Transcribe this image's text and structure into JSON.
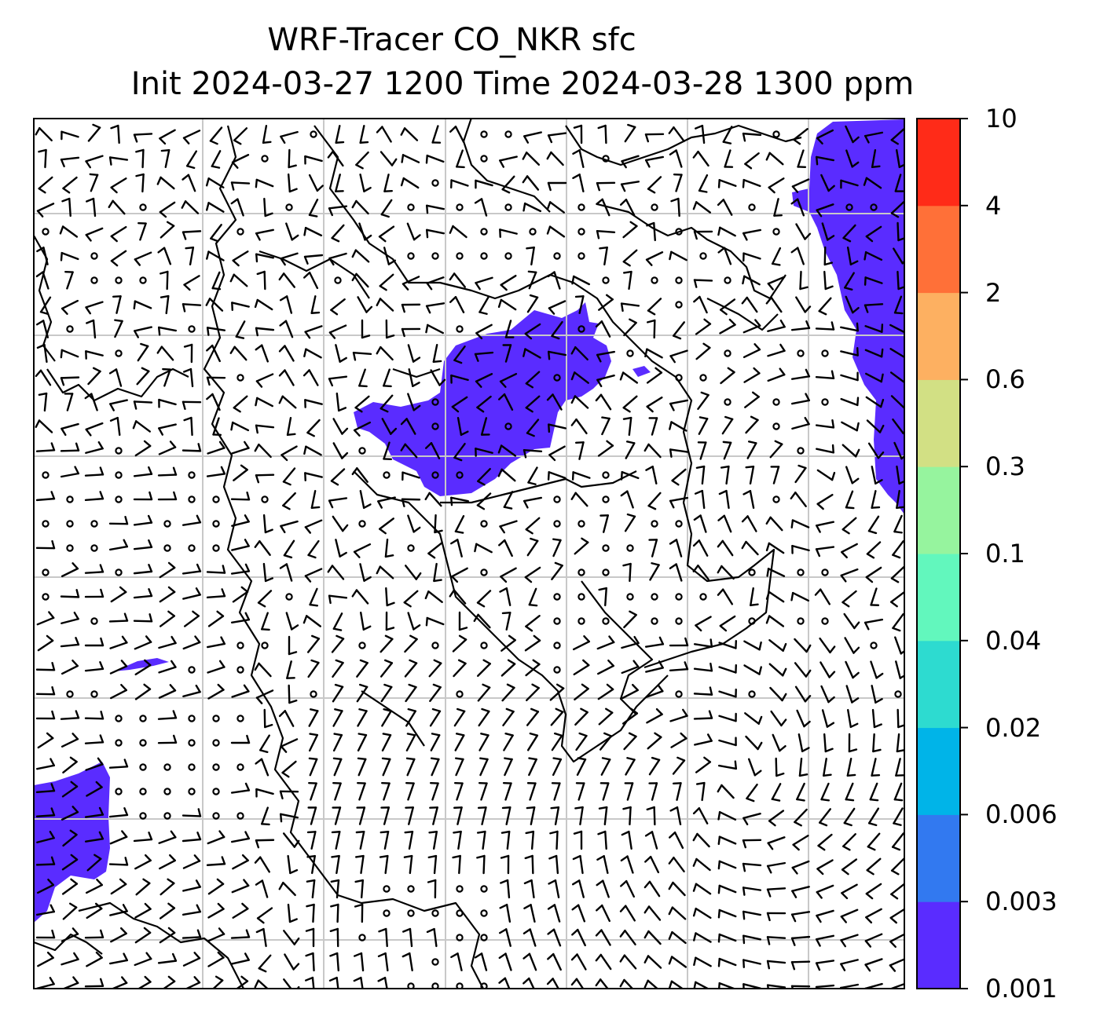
{
  "title": {
    "line1": "WRF-Tracer CO_NKR sfc",
    "line2": "Init 2024-03-27 1200 Time 2024-03-28 1300 ppm"
  },
  "colorbar": {
    "levels": [
      "0.001",
      "0.003",
      "0.006",
      "0.02",
      "0.04",
      "0.1",
      "0.3",
      "0.6",
      "2",
      "4",
      "10"
    ],
    "colors": [
      "#5a2cff",
      "#3279f0",
      "#00b4e8",
      "#2ddbd0",
      "#62f7bd",
      "#96f49e",
      "#d2e084",
      "#fdb061",
      "#ff7038",
      "#ff2b18"
    ]
  },
  "map": {
    "plume_color": "#5a2cff",
    "grid_color": "#c8c8c8",
    "barb_color": "#000000"
  }
}
